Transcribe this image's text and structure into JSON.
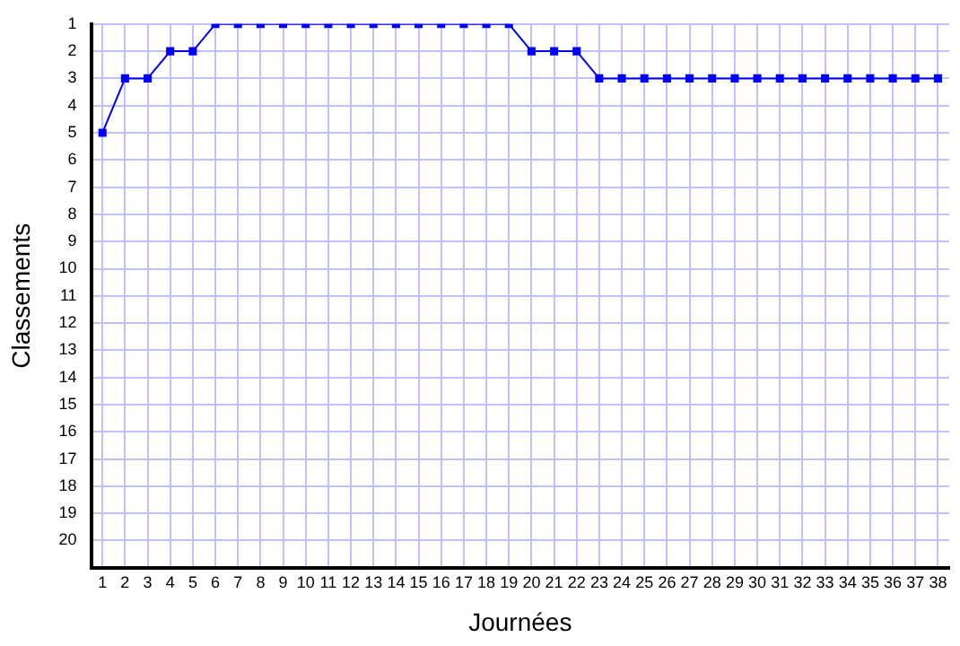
{
  "chart_data": {
    "type": "line",
    "xlabel": "Journées",
    "ylabel": "Classements",
    "x": [
      1,
      2,
      3,
      4,
      5,
      6,
      7,
      8,
      9,
      10,
      11,
      12,
      13,
      14,
      15,
      16,
      17,
      18,
      19,
      20,
      21,
      22,
      23,
      24,
      25,
      26,
      27,
      28,
      29,
      30,
      31,
      32,
      33,
      34,
      35,
      36,
      37,
      38
    ],
    "series": [
      {
        "color": "#0000ff",
        "values": [
          5,
          3,
          3,
          2,
          2,
          1,
          1,
          1,
          1,
          1,
          1,
          1,
          1,
          1,
          1,
          1,
          1,
          1,
          1,
          2,
          2,
          2,
          3,
          3,
          3,
          3,
          3,
          3,
          3,
          3,
          3,
          3,
          3,
          3,
          3,
          3,
          3,
          3
        ]
      }
    ],
    "xlim": [
      0.5,
      38.5
    ],
    "ylim": [
      21,
      1
    ],
    "xticks": [
      1,
      2,
      3,
      4,
      5,
      6,
      7,
      8,
      9,
      10,
      11,
      12,
      13,
      14,
      15,
      16,
      17,
      18,
      19,
      20,
      21,
      22,
      23,
      24,
      25,
      26,
      27,
      28,
      29,
      30,
      31,
      32,
      33,
      34,
      35,
      36,
      37,
      38
    ],
    "yticks": [
      1,
      2,
      3,
      4,
      5,
      6,
      7,
      8,
      9,
      10,
      11,
      12,
      13,
      14,
      15,
      16,
      17,
      18,
      19,
      20
    ],
    "grid": true,
    "legend": false,
    "marker": "square",
    "line_style": "solid"
  }
}
